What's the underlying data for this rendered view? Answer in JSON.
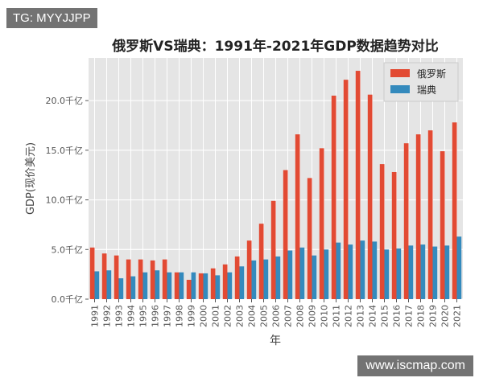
{
  "chart_data": {
    "type": "bar",
    "title": "俄罗斯VS瑞典：1991年-2021年GDP数据趋势对比",
    "xlabel": "年",
    "ylabel": "GDP(现价美元)",
    "ylim": [
      0,
      24.3
    ],
    "yticks": [
      0,
      5,
      10,
      15,
      20
    ],
    "ytick_labels": [
      "0.0千亿",
      "5.0千亿",
      "10.0千亿",
      "15.0千亿",
      "20.0千亿"
    ],
    "grid": true,
    "legend_position": "top-right",
    "categories": [
      "1991",
      "1992",
      "1993",
      "1994",
      "1995",
      "1996",
      "1997",
      "1998",
      "1999",
      "2000",
      "2001",
      "2002",
      "2003",
      "2004",
      "2005",
      "2006",
      "2007",
      "2008",
      "2009",
      "2010",
      "2011",
      "2012",
      "2013",
      "2014",
      "2015",
      "2016",
      "2017",
      "2018",
      "2019",
      "2020",
      "2021"
    ],
    "series": [
      {
        "name": "俄罗斯",
        "color": "#e24a33",
        "values": [
          5.2,
          4.6,
          4.4,
          4.0,
          4.0,
          3.9,
          4.0,
          2.7,
          1.95,
          2.6,
          3.1,
          3.5,
          4.3,
          5.9,
          7.6,
          9.9,
          13.0,
          16.6,
          12.2,
          15.2,
          20.5,
          22.1,
          23.0,
          20.6,
          13.6,
          12.8,
          15.7,
          16.6,
          17.0,
          14.9,
          17.8
        ]
      },
      {
        "name": "瑞典",
        "color": "#348abd",
        "values": [
          2.8,
          2.9,
          2.1,
          2.3,
          2.7,
          2.9,
          2.7,
          2.7,
          2.7,
          2.6,
          2.4,
          2.7,
          3.3,
          3.9,
          4.0,
          4.3,
          4.9,
          5.2,
          4.4,
          5.0,
          5.7,
          5.5,
          5.9,
          5.8,
          5.0,
          5.1,
          5.4,
          5.5,
          5.3,
          5.4,
          6.3
        ]
      }
    ]
  },
  "watermarks": {
    "top_left": "TG: MYYJJPP",
    "bottom_right": "www.iscmap.com"
  }
}
